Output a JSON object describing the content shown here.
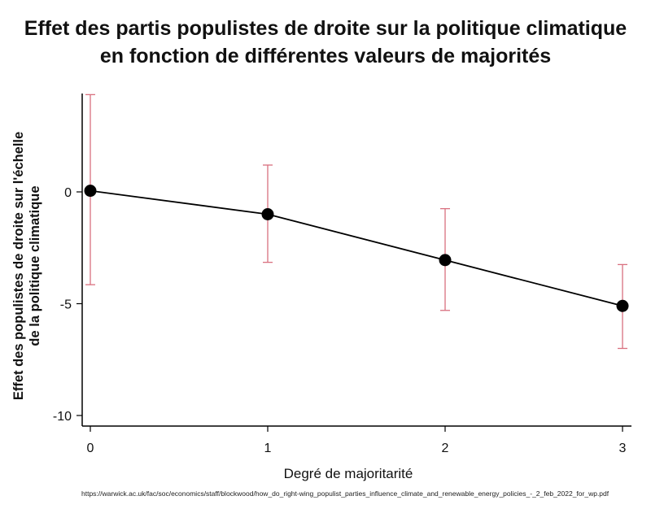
{
  "title_lines": [
    "Effet des partis populistes de droite sur la politique climatique",
    "en fonction de différentes valeurs de majorités"
  ],
  "source": "https://warwick.ac.uk/fac/soc/economics/staff/blockwood/how_do_right-wing_populist_parties_influence_climate_and_renewable_energy_policies_-_2_feb_2022_for_wp.pdf",
  "chart_data": {
    "type": "scatter",
    "title": "Effet des partis populistes de droite sur la politique climatique en fonction de différentes valeurs de majorités",
    "xlabel": "Degré de majoritarité",
    "ylabel_lines": [
      "Effet des populistes de droite sur l'échelle",
      "de la politique climatique"
    ],
    "x": [
      0,
      1,
      2,
      3
    ],
    "y": [
      0.05,
      -1.0,
      -3.05,
      -5.1
    ],
    "ci_low": [
      -4.15,
      -3.15,
      -5.3,
      -7.0
    ],
    "ci_high": [
      4.35,
      1.2,
      -0.75,
      -3.25
    ],
    "xticks": [
      0,
      1,
      2,
      3
    ],
    "yticks": [
      0,
      -5,
      -10
    ],
    "xlim": [
      0,
      3
    ],
    "ylim": [
      -10,
      4.5
    ],
    "grid": false,
    "colors": {
      "line": "#000000",
      "point": "#000000",
      "errorbar": "#d9707f"
    }
  }
}
